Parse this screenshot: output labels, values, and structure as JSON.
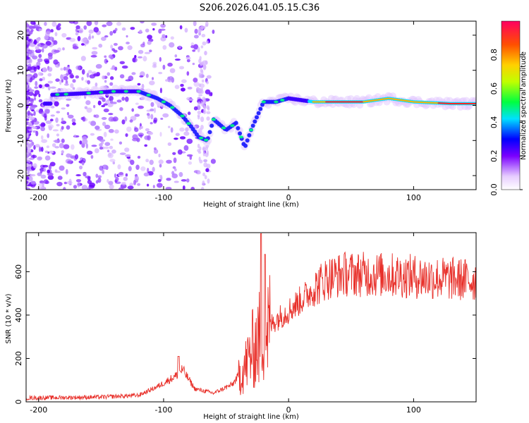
{
  "title": "S206.2026.041.05.15.C36",
  "chart_data": [
    {
      "type": "heatmap",
      "name": "spectrogram",
      "xlabel": "Height of straight line (km)",
      "ylabel": "Frequency (Hz)",
      "xlim": [
        -210,
        150
      ],
      "ylim": [
        -24,
        24
      ],
      "xticks": [
        -200,
        -100,
        0,
        100
      ],
      "yticks": [
        -20,
        -10,
        0,
        10,
        20
      ],
      "ridge": [
        {
          "x": -190,
          "y": 3
        },
        {
          "x": -160,
          "y": 3.5
        },
        {
          "x": -140,
          "y": 4
        },
        {
          "x": -120,
          "y": 4
        },
        {
          "x": -105,
          "y": 2
        },
        {
          "x": -95,
          "y": 0
        },
        {
          "x": -85,
          "y": -3
        },
        {
          "x": -78,
          "y": -6
        },
        {
          "x": -72,
          "y": -9
        },
        {
          "x": -65,
          "y": -10
        },
        {
          "x": -60,
          "y": -4
        },
        {
          "x": -50,
          "y": -7
        },
        {
          "x": -42,
          "y": -5
        },
        {
          "x": -35,
          "y": -12
        },
        {
          "x": -30,
          "y": -7
        },
        {
          "x": -20,
          "y": 1
        },
        {
          "x": -10,
          "y": 1
        },
        {
          "x": 0,
          "y": 2
        },
        {
          "x": 20,
          "y": 1
        },
        {
          "x": 40,
          "y": 1
        },
        {
          "x": 60,
          "y": 1
        },
        {
          "x": 80,
          "y": 2
        },
        {
          "x": 100,
          "y": 1
        },
        {
          "x": 130,
          "y": 0.5
        },
        {
          "x": 150,
          "y": 0.5
        }
      ],
      "colorbar": {
        "label": "Normalized spectral amplitude",
        "range": [
          0,
          1
        ],
        "ticks": [
          "0.0",
          "0.2",
          "0.4",
          "0.6",
          "0.8"
        ]
      }
    },
    {
      "type": "line",
      "name": "snr",
      "xlabel": "Height of straight line (km)",
      "ylabel": "SNR (10 * v/v)",
      "xlim": [
        -210,
        150
      ],
      "ylim": [
        0,
        780
      ],
      "xticks": [
        -200,
        -100,
        0,
        100
      ],
      "yticks": [
        0,
        200,
        400,
        600
      ],
      "color": "#e8302a",
      "trend": [
        {
          "x": -210,
          "y": 18
        },
        {
          "x": -150,
          "y": 22
        },
        {
          "x": -120,
          "y": 30
        },
        {
          "x": -105,
          "y": 70
        },
        {
          "x": -90,
          "y": 120
        },
        {
          "x": -85,
          "y": 150
        },
        {
          "x": -75,
          "y": 60
        },
        {
          "x": -60,
          "y": 40
        },
        {
          "x": -45,
          "y": 80
        },
        {
          "x": -35,
          "y": 160
        },
        {
          "x": -28,
          "y": 250
        },
        {
          "x": -20,
          "y": 320
        },
        {
          "x": -10,
          "y": 380
        },
        {
          "x": 0,
          "y": 420
        },
        {
          "x": 10,
          "y": 470
        },
        {
          "x": 20,
          "y": 520
        },
        {
          "x": 30,
          "y": 570
        },
        {
          "x": 45,
          "y": 590
        },
        {
          "x": 80,
          "y": 585
        },
        {
          "x": 120,
          "y": 570
        },
        {
          "x": 150,
          "y": 560
        }
      ],
      "peaks": [
        {
          "x": -88,
          "y": 210
        },
        {
          "x": -22,
          "y": 775
        },
        {
          "x": -19,
          "y": 680
        }
      ]
    }
  ]
}
